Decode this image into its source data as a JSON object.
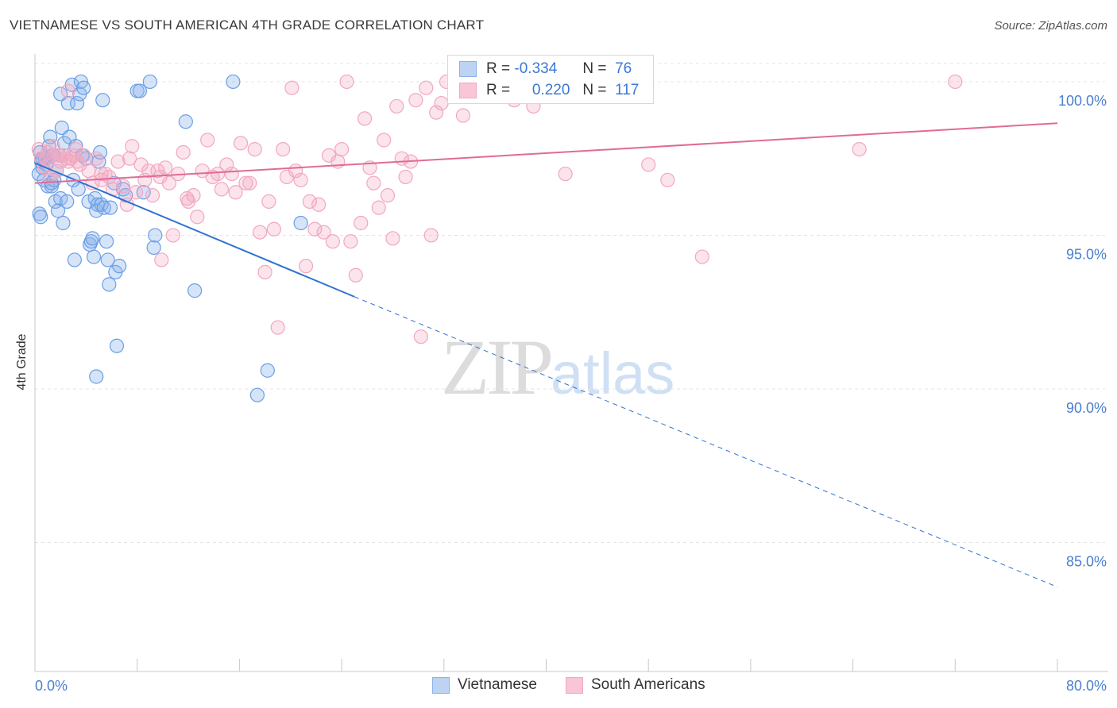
{
  "title": "VIETNAMESE VS SOUTH AMERICAN 4TH GRADE CORRELATION CHART",
  "source": "Source: ZipAtlas.com",
  "watermark": {
    "zip": "ZIP",
    "atlas": "atlas"
  },
  "colors": {
    "vietnamese": "#8ab3ea",
    "vietnamese_line": "#2f72d0",
    "south_american": "#f2a7c0",
    "south_american_line": "#e06b96",
    "tick_text": "#4a7fd1"
  },
  "stats": {
    "row1": {
      "r_label": "R =",
      "r_value": "-0.334",
      "n_label": "N =",
      "n_value": "76"
    },
    "row2": {
      "r_label": "R =",
      "r_value": "0.220",
      "n_label": "N =",
      "n_value": "117"
    }
  },
  "legend": {
    "vietnamese": "Vietnamese",
    "south_american": "South Americans"
  },
  "chart_data": {
    "type": "scatter",
    "title": "VIETNAMESE VS SOUTH AMERICAN 4TH GRADE CORRELATION CHART",
    "xlabel": "",
    "ylabel": "4th Grade",
    "xlim": [
      0,
      80
    ],
    "ylim": [
      80.8,
      100.8
    ],
    "x_tick_labels": [
      "0.0%",
      "80.0%"
    ],
    "y_ticks": [
      85,
      90,
      95,
      100
    ],
    "y_tick_labels": [
      "85.0%",
      "90.0%",
      "95.0%",
      "100.0%"
    ],
    "grid": true,
    "series": [
      {
        "name": "Vietnamese",
        "r": -0.334,
        "n": 76,
        "trend": {
          "x0": 0,
          "y0": 97.35,
          "x1": 25,
          "y1": 93.0,
          "dash_to_x": 80,
          "dash_to_y": 83.55
        },
        "points": [
          [
            0.3,
            97.0
          ],
          [
            0.4,
            97.7
          ],
          [
            0.5,
            97.4
          ],
          [
            0.6,
            97.2
          ],
          [
            0.7,
            96.8
          ],
          [
            0.8,
            97.5
          ],
          [
            0.9,
            97.3
          ],
          [
            1.0,
            96.6
          ],
          [
            1.1,
            97.9
          ],
          [
            1.2,
            98.2
          ],
          [
            1.3,
            96.6
          ],
          [
            1.4,
            97.6
          ],
          [
            1.5,
            96.8
          ],
          [
            1.6,
            96.1
          ],
          [
            1.7,
            97.1
          ],
          [
            1.8,
            95.8
          ],
          [
            1.9,
            97.6
          ],
          [
            2.0,
            96.2
          ],
          [
            2.1,
            98.5
          ],
          [
            2.2,
            95.4
          ],
          [
            2.3,
            98.0
          ],
          [
            2.5,
            96.1
          ],
          [
            2.6,
            99.3
          ],
          [
            2.7,
            98.2
          ],
          [
            2.9,
            99.9
          ],
          [
            3.0,
            96.8
          ],
          [
            3.1,
            94.2
          ],
          [
            3.2,
            97.9
          ],
          [
            3.3,
            99.3
          ],
          [
            3.4,
            96.5
          ],
          [
            3.5,
            99.6
          ],
          [
            3.6,
            100.0
          ],
          [
            3.7,
            97.6
          ],
          [
            3.8,
            99.8
          ],
          [
            4.0,
            97.5
          ],
          [
            4.2,
            96.1
          ],
          [
            4.3,
            94.7
          ],
          [
            4.4,
            94.8
          ],
          [
            4.5,
            94.9
          ],
          [
            4.6,
            94.3
          ],
          [
            4.7,
            96.2
          ],
          [
            4.8,
            95.8
          ],
          [
            4.9,
            96.0
          ],
          [
            5.0,
            97.4
          ],
          [
            5.1,
            97.7
          ],
          [
            5.2,
            96.0
          ],
          [
            5.3,
            99.4
          ],
          [
            5.4,
            95.9
          ],
          [
            5.6,
            94.8
          ],
          [
            5.7,
            94.2
          ],
          [
            5.9,
            95.9
          ],
          [
            6.2,
            96.7
          ],
          [
            6.3,
            93.8
          ],
          [
            6.4,
            91.4
          ],
          [
            6.6,
            94.0
          ],
          [
            6.9,
            96.5
          ],
          [
            8.0,
            99.7
          ],
          [
            8.5,
            96.4
          ],
          [
            9.0,
            100.0
          ],
          [
            9.3,
            94.6
          ],
          [
            9.4,
            95.0
          ],
          [
            11.8,
            98.7
          ],
          [
            12.5,
            93.2
          ],
          [
            15.5,
            100.0
          ],
          [
            18.2,
            90.6
          ],
          [
            17.4,
            89.8
          ],
          [
            20.8,
            95.4
          ],
          [
            0.35,
            95.7
          ],
          [
            0.45,
            95.6
          ],
          [
            2.0,
            99.6
          ],
          [
            4.8,
            90.4
          ],
          [
            5.8,
            93.4
          ],
          [
            8.2,
            99.7
          ],
          [
            7.1,
            96.3
          ],
          [
            0.6,
            97.5
          ],
          [
            1.3,
            96.7
          ]
        ]
      },
      {
        "name": "South Americans",
        "r": 0.22,
        "n": 117,
        "trend": {
          "x0": 0,
          "y0": 96.7,
          "x1": 80,
          "y1": 98.65
        },
        "points": [
          [
            0.3,
            97.8
          ],
          [
            0.5,
            97.5
          ],
          [
            0.8,
            97.2
          ],
          [
            1.0,
            97.7
          ],
          [
            1.2,
            96.9
          ],
          [
            1.4,
            97.9
          ],
          [
            1.5,
            97.6
          ],
          [
            1.7,
            97.1
          ],
          [
            2.0,
            97.4
          ],
          [
            2.2,
            97.6
          ],
          [
            2.4,
            97.5
          ],
          [
            2.6,
            97.4
          ],
          [
            2.8,
            97.5
          ],
          [
            3.0,
            97.6
          ],
          [
            3.2,
            97.8
          ],
          [
            3.5,
            97.3
          ],
          [
            3.8,
            97.6
          ],
          [
            4.2,
            97.1
          ],
          [
            4.5,
            96.7
          ],
          [
            4.8,
            97.5
          ],
          [
            5.2,
            96.8
          ],
          [
            5.5,
            97.0
          ],
          [
            5.8,
            96.9
          ],
          [
            6.1,
            96.5
          ],
          [
            6.5,
            97.4
          ],
          [
            6.9,
            96.6
          ],
          [
            7.2,
            96.0
          ],
          [
            7.6,
            97.9
          ],
          [
            7.9,
            96.4
          ],
          [
            8.3,
            97.3
          ],
          [
            8.6,
            96.8
          ],
          [
            8.9,
            97.1
          ],
          [
            9.2,
            96.3
          ],
          [
            9.6,
            97.1
          ],
          [
            9.9,
            94.2
          ],
          [
            10.2,
            97.2
          ],
          [
            10.5,
            96.7
          ],
          [
            10.8,
            95.0
          ],
          [
            11.2,
            97.0
          ],
          [
            11.6,
            97.7
          ],
          [
            12.0,
            96.1
          ],
          [
            12.4,
            96.3
          ],
          [
            12.7,
            95.6
          ],
          [
            13.1,
            97.1
          ],
          [
            13.5,
            98.1
          ],
          [
            13.9,
            96.9
          ],
          [
            14.3,
            97.0
          ],
          [
            14.6,
            96.5
          ],
          [
            15.0,
            97.3
          ],
          [
            15.4,
            97.0
          ],
          [
            15.7,
            96.4
          ],
          [
            16.1,
            98.0
          ],
          [
            16.5,
            96.7
          ],
          [
            16.8,
            96.7
          ],
          [
            17.2,
            97.8
          ],
          [
            17.6,
            95.1
          ],
          [
            18.0,
            93.8
          ],
          [
            18.3,
            96.1
          ],
          [
            18.7,
            95.2
          ],
          [
            19.0,
            92.0
          ],
          [
            19.4,
            97.8
          ],
          [
            19.7,
            96.9
          ],
          [
            20.1,
            99.8
          ],
          [
            20.4,
            97.1
          ],
          [
            20.8,
            96.8
          ],
          [
            21.2,
            94.0
          ],
          [
            21.5,
            96.1
          ],
          [
            21.9,
            95.2
          ],
          [
            22.2,
            96.0
          ],
          [
            22.6,
            95.1
          ],
          [
            23.0,
            97.6
          ],
          [
            23.3,
            94.8
          ],
          [
            23.7,
            97.4
          ],
          [
            24.0,
            97.8
          ],
          [
            24.4,
            100.0
          ],
          [
            24.7,
            94.8
          ],
          [
            25.1,
            93.7
          ],
          [
            25.5,
            95.4
          ],
          [
            25.8,
            98.8
          ],
          [
            26.2,
            97.2
          ],
          [
            26.5,
            96.7
          ],
          [
            26.9,
            95.9
          ],
          [
            27.3,
            98.1
          ],
          [
            27.6,
            96.3
          ],
          [
            28.0,
            94.9
          ],
          [
            28.3,
            99.2
          ],
          [
            28.7,
            97.5
          ],
          [
            29.0,
            96.9
          ],
          [
            29.4,
            97.4
          ],
          [
            29.8,
            99.4
          ],
          [
            30.2,
            91.7
          ],
          [
            30.6,
            99.8
          ],
          [
            31.0,
            95.0
          ],
          [
            31.4,
            99.0
          ],
          [
            31.8,
            99.3
          ],
          [
            32.2,
            100.0
          ],
          [
            33.5,
            98.9
          ],
          [
            34.5,
            100.0
          ],
          [
            36.0,
            99.7
          ],
          [
            37.5,
            99.4
          ],
          [
            38.5,
            99.8
          ],
          [
            39.0,
            99.2
          ],
          [
            48.0,
            97.3
          ],
          [
            49.5,
            96.8
          ],
          [
            52.2,
            94.3
          ],
          [
            64.5,
            97.8
          ],
          [
            72.0,
            100.0
          ],
          [
            2.6,
            99.7
          ],
          [
            40.0,
            99.9
          ],
          [
            5.2,
            97.0
          ],
          [
            7.4,
            97.5
          ],
          [
            3.3,
            97.4
          ],
          [
            0.9,
            97.5
          ],
          [
            1.9,
            97.6
          ],
          [
            9.8,
            96.9
          ],
          [
            11.9,
            96.2
          ],
          [
            41.5,
            97.0
          ]
        ]
      }
    ]
  }
}
